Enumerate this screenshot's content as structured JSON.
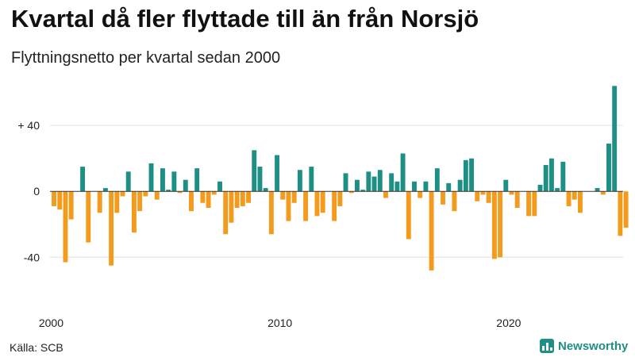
{
  "title": "Kvartal då fler flyttade till än från Norsjö",
  "subtitle": "Flyttningsnetto per kvartal sedan 2000",
  "source": "Källa: SCB",
  "brand": "Newsworthy",
  "colors": {
    "positive": "#1e8f85",
    "negative": "#f29b1d",
    "grid": "#e0e0e0",
    "zero": "#333333"
  },
  "chart_data": {
    "type": "bar",
    "x_start": 2000,
    "x_step": 0.25,
    "xlim": [
      1999.95,
      2025.0
    ],
    "xticks": [
      "2000",
      "2010",
      "2020"
    ],
    "ylim": [
      -62,
      68
    ],
    "yticks": [
      {
        "value": 40,
        "label": "+ 40"
      },
      {
        "value": 0,
        "label": "0"
      },
      {
        "value": -40,
        "label": "-40"
      }
    ],
    "grid": true,
    "values": [
      -9,
      -11,
      -43,
      -17,
      0,
      15,
      -31,
      0,
      -13,
      2,
      -45,
      -13,
      -3,
      12,
      -25,
      -12,
      -3,
      17,
      -5,
      14,
      1,
      12,
      -1,
      7,
      -12,
      14,
      -7,
      -10,
      -2,
      6,
      -26,
      -19,
      -10,
      -9,
      -7,
      25,
      15,
      2,
      -26,
      22,
      -5,
      -18,
      -7,
      13,
      -18,
      15,
      -15,
      -13,
      0,
      -18,
      -9,
      11,
      -1,
      7,
      1,
      12,
      9,
      13,
      -4,
      11,
      6,
      23,
      -29,
      6,
      -4,
      6,
      -48,
      14,
      -8,
      5,
      -12,
      7,
      19,
      20,
      -6,
      -2,
      -7,
      -41,
      -40,
      7,
      -2,
      -10,
      0,
      -15,
      -15,
      4,
      16,
      20,
      2,
      18,
      -9,
      -5,
      -13,
      0,
      0,
      2,
      -2,
      29,
      64,
      -27,
      -22
    ]
  }
}
